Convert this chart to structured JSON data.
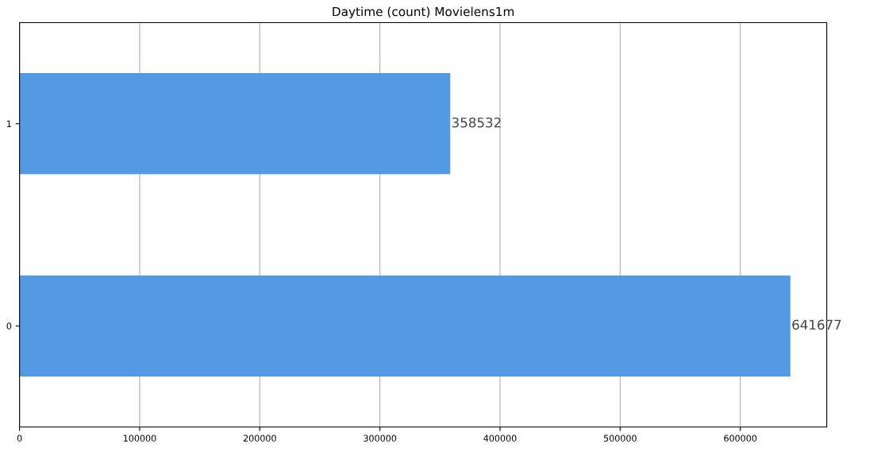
{
  "chart_data": {
    "type": "bar",
    "title": "Daytime (count) Movielens1m",
    "orientation": "horizontal",
    "categories": [
      "1",
      "0"
    ],
    "values": [
      358532,
      641677
    ],
    "color": "#5499e3",
    "xlim": [
      0,
      672000
    ],
    "xticks": [
      0,
      100000,
      200000,
      300000,
      400000,
      500000,
      600000
    ],
    "grid": "x",
    "data_labels": true
  }
}
